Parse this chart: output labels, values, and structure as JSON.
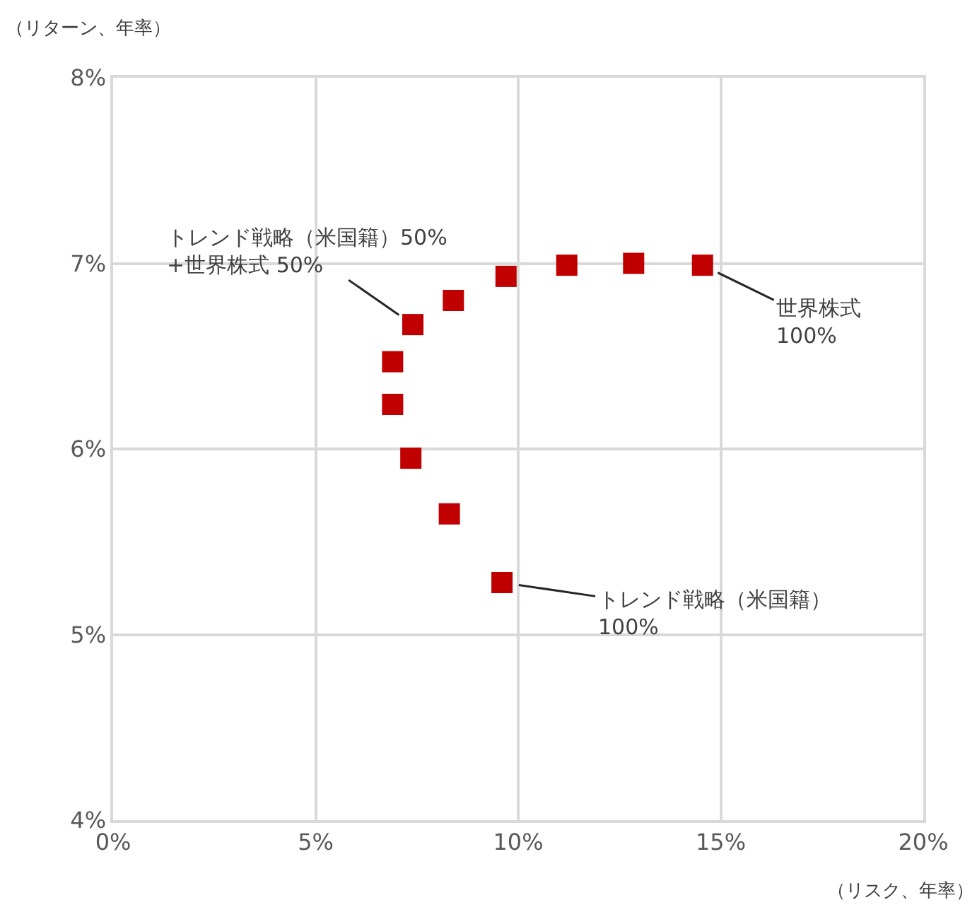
{
  "chart_data": {
    "type": "scatter",
    "xlabel": "（リスク、年率）",
    "ylabel": "（リターン、年率）",
    "x": [
      9.6,
      8.3,
      7.35,
      6.9,
      6.9,
      7.4,
      8.4,
      9.7,
      11.2,
      12.85,
      14.55
    ],
    "series": [
      {
        "color": "#c00000",
        "values": [
          5.28,
          5.65,
          5.95,
          6.24,
          6.47,
          6.67,
          6.8,
          6.93,
          6.99,
          7.0,
          6.99
        ]
      }
    ],
    "xlim": [
      0,
      20
    ],
    "xticks": [
      {
        "value": 0,
        "label": "0%"
      },
      {
        "value": 5,
        "label": "5%"
      },
      {
        "value": 10,
        "label": "10%"
      },
      {
        "value": 15,
        "label": "15%"
      },
      {
        "value": 20,
        "label": "20%"
      }
    ],
    "ylim": [
      4,
      8
    ],
    "yticks": [
      {
        "value": 4,
        "label": "4%"
      },
      {
        "value": 5,
        "label": "5%"
      },
      {
        "value": 6,
        "label": "6%"
      },
      {
        "value": 7,
        "label": "7%"
      },
      {
        "value": 8,
        "label": "8%"
      }
    ],
    "annotations": [
      {
        "text": "トレンド戦略（米国籍）\n100%",
        "x": 9.6,
        "y": 5.28
      },
      {
        "text": "トレンド戦略（米国籍）50%\n+世界株式 50%",
        "x": 7.4,
        "y": 6.67
      },
      {
        "text": "世界株式\n100%",
        "x": 14.55,
        "y": 6.99
      }
    ],
    "grid": true,
    "marker": "square"
  }
}
